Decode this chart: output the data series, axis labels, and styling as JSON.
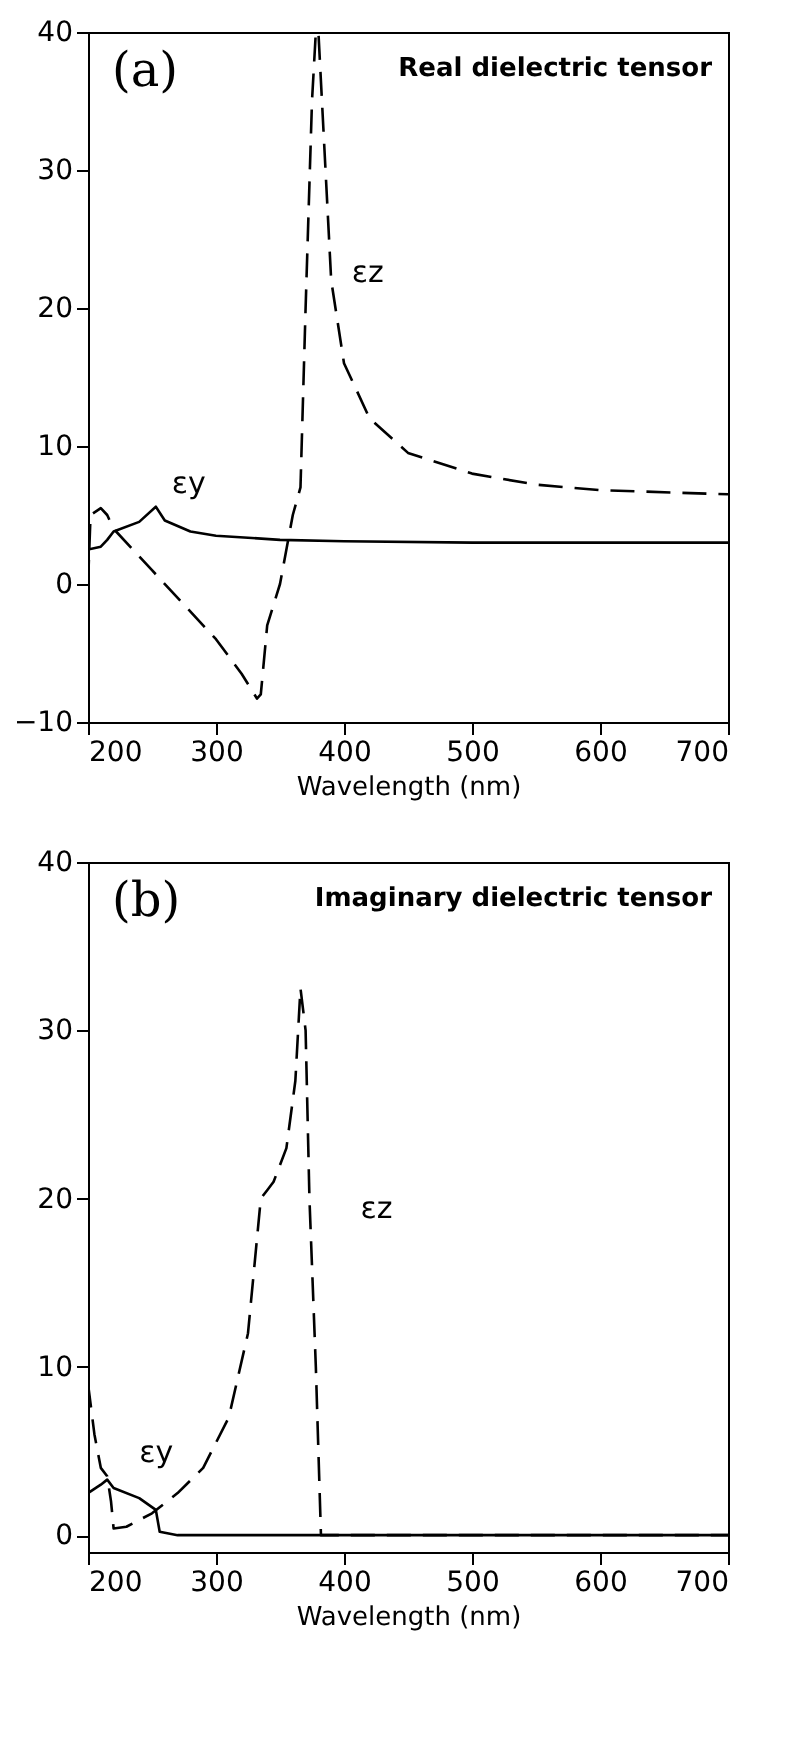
{
  "chart_data": [
    {
      "type": "line",
      "title": "Real dielectric tensor",
      "annotations": [
        "(a)"
      ],
      "xlabel": "Wavelength (nm)",
      "xlim": [
        200,
        700
      ],
      "xticks": [
        200,
        300,
        400,
        500,
        600,
        700
      ],
      "ylim": [
        -10,
        40
      ],
      "yticks": [
        -10,
        0,
        10,
        20,
        30,
        40
      ],
      "grid": false,
      "series": [
        {
          "name": "εy",
          "color": "#000000",
          "line_style": "solid",
          "x": [
            200,
            210,
            215,
            220,
            240,
            253,
            260,
            280,
            300,
            350,
            400,
            500,
            700
          ],
          "values": [
            2.5,
            2.7,
            3.2,
            3.8,
            4.5,
            5.6,
            4.6,
            3.8,
            3.5,
            3.2,
            3.1,
            3.0,
            3.0
          ]
        },
        {
          "name": "εz",
          "color": "#000000",
          "line_style": "dashed",
          "x": [
            200,
            202,
            210,
            215,
            220,
            250,
            300,
            320,
            332,
            335,
            340,
            350,
            360,
            366,
            370,
            375,
            378,
            380,
            390,
            400,
            420,
            450,
            500,
            550,
            600,
            700
          ],
          "values": [
            0,
            5,
            5.5,
            5,
            4,
            1,
            -4,
            -6.5,
            -8.3,
            -8,
            -3,
            0,
            5,
            7,
            20,
            35,
            40,
            40,
            22,
            16,
            12,
            9.5,
            8,
            7.2,
            6.8,
            6.5
          ]
        }
      ]
    },
    {
      "type": "line",
      "title": "Imaginary dielectric tensor",
      "annotations": [
        "(b)"
      ],
      "xlabel": "Wavelength (nm)",
      "xlim": [
        200,
        700
      ],
      "xticks": [
        200,
        300,
        400,
        500,
        600,
        700
      ],
      "ylim": [
        -1,
        40
      ],
      "yticks": [
        0,
        10,
        20,
        30,
        40
      ],
      "grid": false,
      "series": [
        {
          "name": "εy",
          "color": "#000000",
          "line_style": "solid",
          "x": [
            200,
            210,
            215,
            220,
            240,
            253,
            256,
            270,
            700
          ],
          "values": [
            2.5,
            3,
            3.3,
            2.8,
            2.2,
            1.5,
            0.2,
            0,
            0
          ]
        },
        {
          "name": "εz",
          "color": "#000000",
          "line_style": "dashed",
          "x": [
            200,
            205,
            210,
            215,
            218,
            220,
            230,
            250,
            270,
            290,
            310,
            325,
            330,
            335,
            340,
            345,
            355,
            362,
            366,
            370,
            373,
            378,
            382,
            700
          ],
          "values": [
            9,
            6,
            4,
            3.5,
            2,
            0.4,
            0.5,
            1.3,
            2.5,
            4,
            7,
            12,
            16,
            20,
            20.5,
            21,
            23,
            27,
            32.5,
            30,
            20,
            10,
            0,
            0
          ]
        }
      ]
    }
  ]
}
